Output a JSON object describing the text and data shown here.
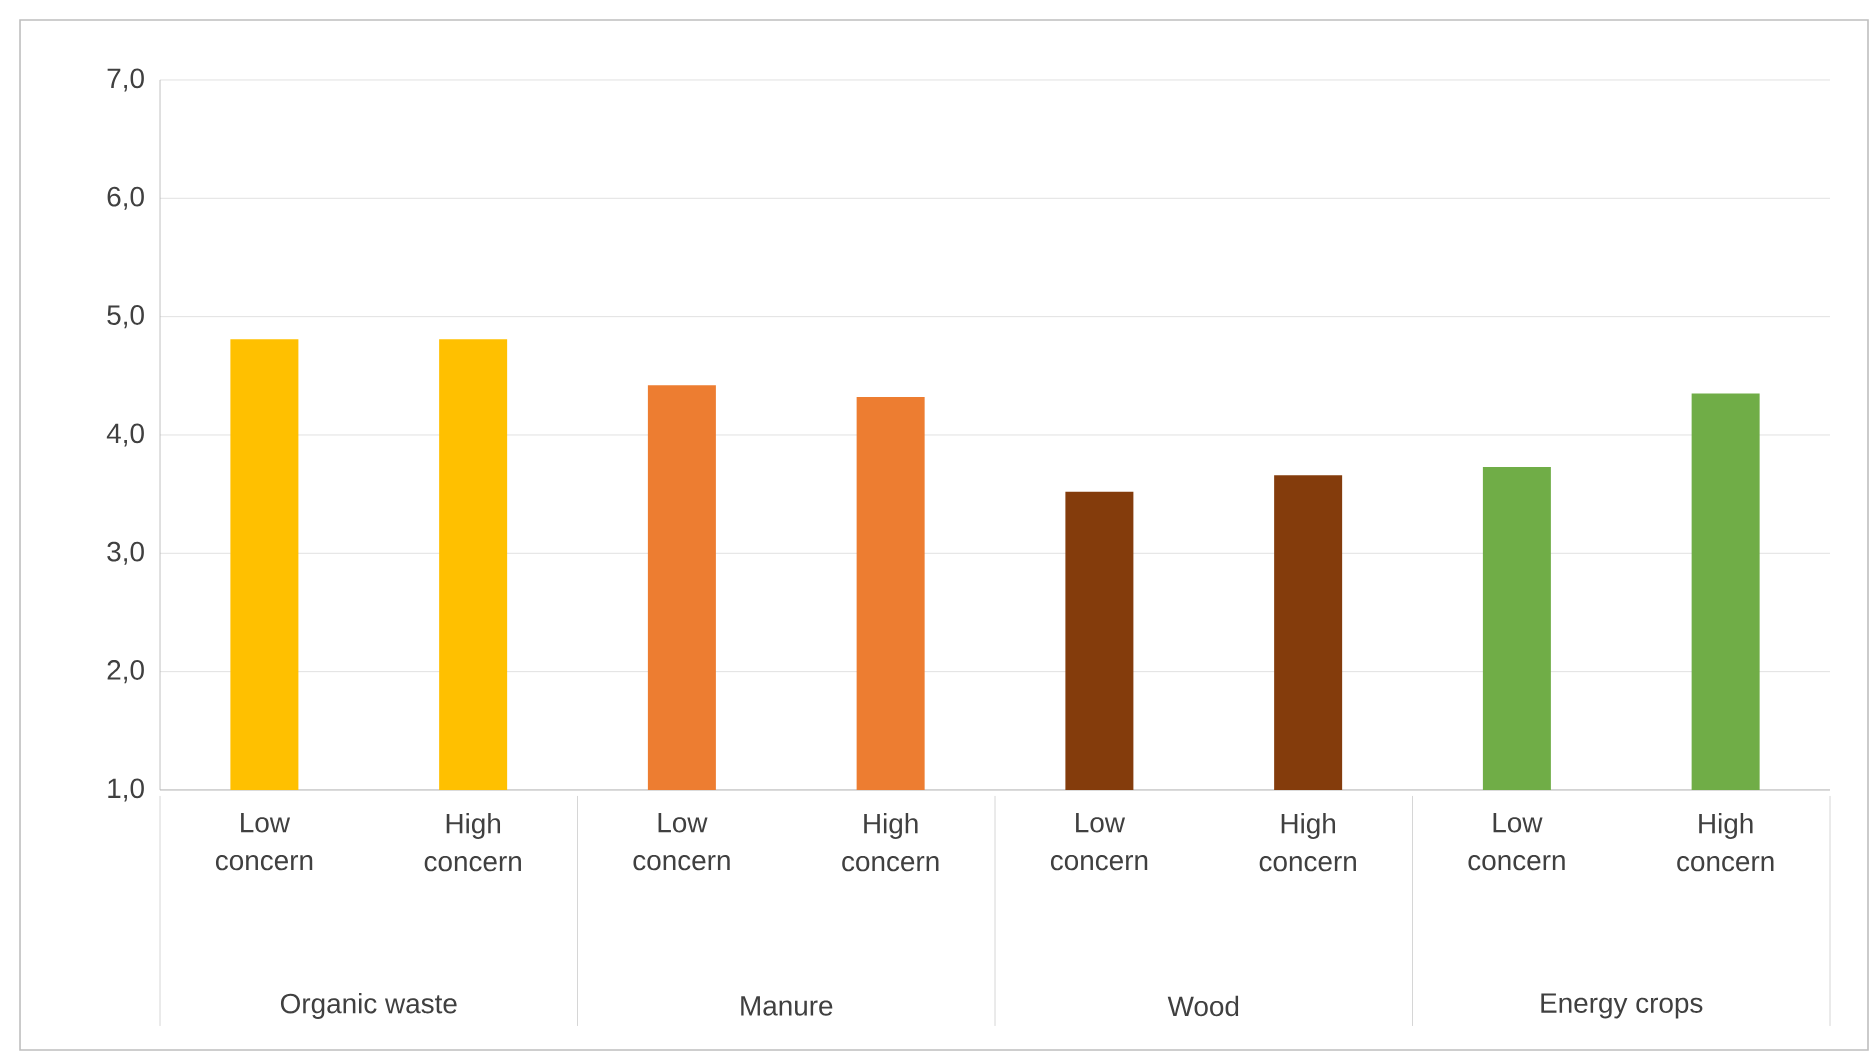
{
  "chart_data": {
    "type": "bar",
    "categories": [
      "Low concern",
      "High concern",
      "Low concern",
      "High concern",
      "Low concern",
      "High concern",
      "Low concern",
      "High concern"
    ],
    "values": [
      4.81,
      4.81,
      4.42,
      4.32,
      3.52,
      3.66,
      3.73,
      4.35
    ],
    "colors": [
      "#ffc000",
      "#ffc000",
      "#ed7d31",
      "#ed7d31",
      "#843c0c",
      "#843c0c",
      "#70ad47",
      "#70ad47"
    ],
    "annotations": [
      "Organic waste",
      "Manure",
      "Wood",
      "Energy crops"
    ],
    "ylim": [
      1,
      7
    ],
    "yticks": [
      {
        "value": 1,
        "label": "1,0"
      },
      {
        "value": 2,
        "label": "2,0"
      },
      {
        "value": 3,
        "label": "3,0"
      },
      {
        "value": 4,
        "label": "4,0"
      },
      {
        "value": 5,
        "label": "5,0"
      },
      {
        "value": 6,
        "label": "6,0"
      },
      {
        "value": 7,
        "label": "7,0"
      }
    ],
    "grid": "y"
  }
}
